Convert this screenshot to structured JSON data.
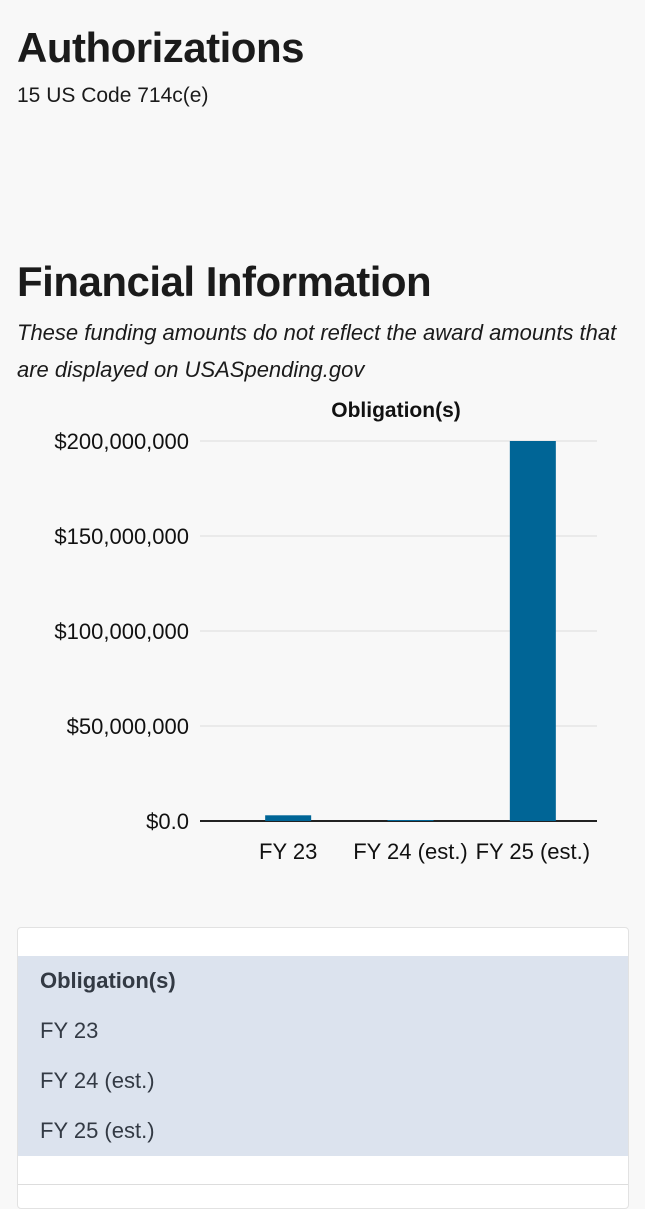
{
  "authorizations": {
    "title": "Authorizations",
    "code": "15 US Code 714c(e)"
  },
  "financial": {
    "title": "Financial Information",
    "note": "These funding amounts do not reflect the award amounts that are displayed on USASpending.gov"
  },
  "chart_data": {
    "type": "bar",
    "title": "Obligation(s)",
    "categories": [
      "FY 23",
      "FY 24 (est.)",
      "FY 25 (est.)"
    ],
    "values": [
      3000000,
      400000,
      200000000
    ],
    "ylim": [
      0,
      200000000
    ],
    "yticks": [
      0,
      50000000,
      100000000,
      150000000,
      200000000
    ],
    "ytick_labels": [
      "$0.0",
      "$50,000,000",
      "$100,000,000",
      "$150,000,000",
      "$200,000,000"
    ],
    "xlabel": "",
    "ylabel": "",
    "grid": true,
    "color": "#006596"
  },
  "table": {
    "header": "Obligation(s)",
    "rows": [
      "FY 23",
      "FY 24 (est.)",
      "FY 25 (est.)"
    ]
  }
}
